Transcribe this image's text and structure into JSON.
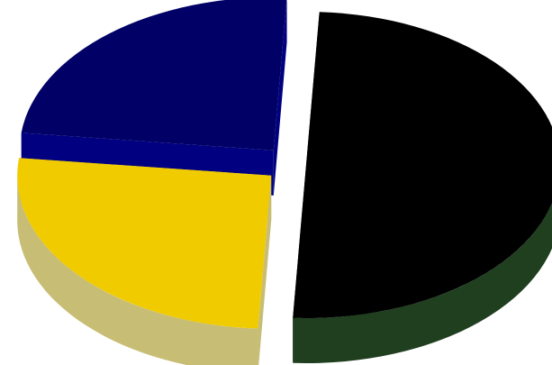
{
  "chart_data": {
    "type": "pie",
    "style": "3d-exploded",
    "title": "",
    "categories": [
      "",
      "",
      ""
    ],
    "values": [
      50,
      26,
      24
    ],
    "colors": {
      "top": [
        "#000000",
        "#f0cb00",
        "#000066"
      ],
      "side": [
        "#1f3f1f",
        "#c8bd74",
        "#000080"
      ]
    },
    "legend": "none",
    "data_labels": "none"
  }
}
